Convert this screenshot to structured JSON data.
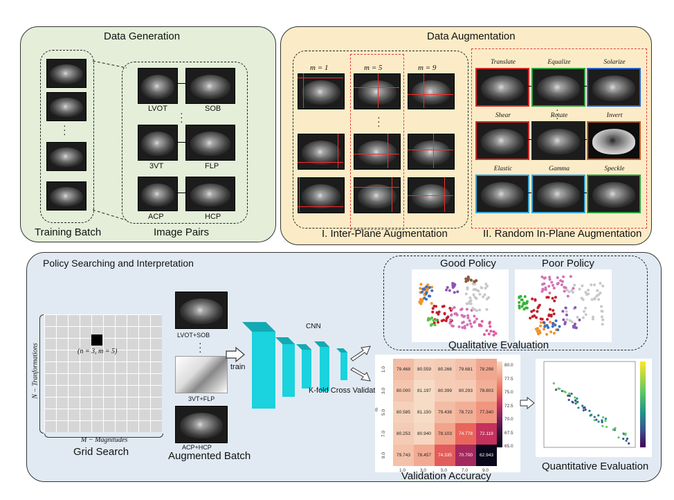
{
  "data_generation": {
    "title": "Data Generation",
    "training_batch_label": "Training Batch",
    "image_pairs_label": "Image Pairs",
    "pairs": [
      {
        "left": "LVOT",
        "right": "SOB"
      },
      {
        "left": "3VT",
        "right": "FLP"
      },
      {
        "left": "ACP",
        "right": "HCP"
      }
    ]
  },
  "data_augmentation": {
    "title": "Data Augmentation",
    "inter_plane_label": "I. Inter-Plane Augmentation",
    "in_plane_label": "II. Random In-Plane Augmentation",
    "m_labels": [
      "m = 1",
      "m = 5",
      "m = 9"
    ],
    "ops": [
      "Translate",
      "Equalize",
      "Solarize",
      "Shear",
      "Rotate",
      "Invert",
      "Elastic",
      "Gamma",
      "Speckle"
    ]
  },
  "policy": {
    "title": "Policy Searching and Interpretation",
    "grid_point_label": "(n = 3, m = 5)",
    "y_axis_label": "N − Tranformations",
    "x_axis_label": "M − Magnitudes",
    "grid_search_label": "Grid Search",
    "augmented_batch_label": "Augmented Batch",
    "batch_labels": [
      "LVOT+SOB",
      "3VT+FLP",
      "ACP+HCP"
    ],
    "train_label": "train",
    "cnn_label": "CNN",
    "kfold_label": "K-fold Cross Validation",
    "good_policy_label": "Good Policy",
    "poor_policy_label": "Poor Policy",
    "qualitative_label": "Qualitative Evaluation",
    "validation_label": "Validation Accuracy",
    "quantitative_label": "Quantitative Evaluation"
  },
  "heatmap": {
    "x_ticks": [
      "1.0",
      "3.0",
      "5.0",
      "7.0",
      "9.0"
    ],
    "y_ticks": [
      "1.0",
      "3.0",
      "5.0",
      "7.0",
      "9.0"
    ],
    "x_axis": "n",
    "y_axis": "m",
    "colorbar_ticks": [
      "80.0",
      "77.5",
      "75.0",
      "72.5",
      "70.0",
      "67.5",
      "65.0"
    ],
    "values": [
      [
        "79.468",
        "80.559",
        "80.266",
        "79.681",
        "78.298"
      ],
      [
        "80.000",
        "81.197",
        "80.399",
        "80.293",
        "78.803"
      ],
      [
        "80.585",
        "81.150",
        "79.438",
        "78.723",
        "77.340"
      ],
      [
        "80.253",
        "80.940",
        "78.103",
        "74.778",
        "72.119"
      ],
      [
        "79.743",
        "78.457",
        "74.335",
        "70.700",
        "62.943"
      ]
    ]
  },
  "colors": {
    "green_panel": "#e4eed9",
    "yellow_panel": "#fbecc7",
    "blue_panel": "#e1eaf3",
    "cnn_cyan": "#1ad3de",
    "red": "#e23b3b"
  }
}
